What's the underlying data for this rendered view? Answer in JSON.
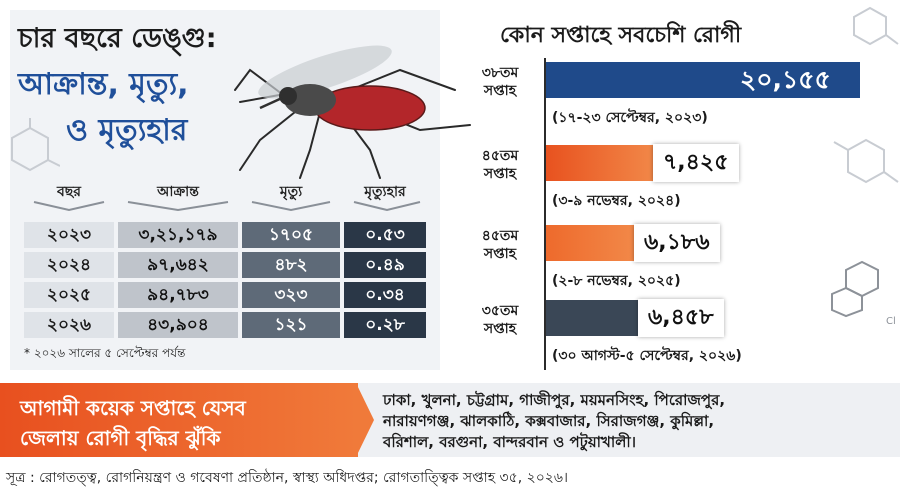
{
  "left": {
    "title_line1": "চার বছরে ডেঙ্গু:",
    "title_line2": "আক্রান্ত, মৃত্যু,",
    "title_line3": "ও মৃত্যুহার",
    "headers": {
      "year": "বছর",
      "infected": "আক্রান্ত",
      "deaths": "মৃত্যু",
      "rate": "মৃত্যুহার"
    },
    "rows": [
      {
        "year": "২০২৩",
        "infected": "৩,২১,১৭৯",
        "deaths": "১৭০৫",
        "rate": "০.৫৩"
      },
      {
        "year": "২০২৪",
        "infected": "৯৭,৬৪২",
        "deaths": "৪৮২",
        "rate": "০.৪৯"
      },
      {
        "year": "২০২৫",
        "infected": "৯৪,৭৮৩",
        "deaths": "৩২৩",
        "rate": "০.৩৪"
      },
      {
        "year": "২০২৬",
        "infected": "৪৩,৯০৪",
        "deaths": "১২১",
        "rate": "০.২৮"
      }
    ],
    "note": "* ২০২৬ সালের ৫ সেপ্টেম্বর পর্যন্ত"
  },
  "right": {
    "title": "কোন সপ্তাহে সবচেশি রোগী",
    "entries": [
      {
        "week_line1": "৩৮তম",
        "week_line2": "সপ্তাহ",
        "value": "২০,১৫৫",
        "range": "(১৭-২৩ সেপ্টেম্বর, ২০২৩)",
        "amount": 20155,
        "color": "#1f4a8a"
      },
      {
        "week_line1": "৪৫তম",
        "week_line2": "সপ্তাহ",
        "value": "৭,৪২৫",
        "range": "(৩-৯ নভেম্বর, ২০২৪)",
        "amount": 7425,
        "color": "#e8521f"
      },
      {
        "week_line1": "৪৫তম",
        "week_line2": "সপ্তাহ",
        "value": "৬,১৮৬",
        "range": "(২-৮ নভেম্বর, ২০২৫)",
        "amount": 6186,
        "color": "#ee6a2c"
      },
      {
        "week_line1": "৩৫তম",
        "week_line2": "সপ্তাহ",
        "value": "৬,৪৫৮",
        "range": "(৩০ আগস্ট-৫ সেপ্টেম্বর, ২০২৬)",
        "amount": 6458,
        "color": "#3a4756"
      }
    ]
  },
  "risk": {
    "line1": "আগামী কয়েক সপ্তাহে যেসব",
    "line2": "জেলায় রোগী বৃদ্ধির ঝুঁকি",
    "districts_line1": "ঢাকা, খুলনা, চট্টগ্রাম, গাজীপুর, ময়মনসিংহ, পিরোজপুর,",
    "districts_line2": "নারায়ণগঞ্জ, ঝালকাঠি, কক্সবাজার, সিরাজগঞ্জ, কুমিল্লা,",
    "districts_line3": "বরিশাল, বরগুনা, বান্দরবান ও পটুয়াখালী।"
  },
  "source": "সূত্র : রোগতত্ত্ব, রোগনিয়ন্ত্রণ ও গবেষণা প্রতিষ্ঠান, স্বাস্থ্য অধিদপ্তর; রোগতাত্ত্বিক সপ্তাহ ৩৫, ২০২৬।",
  "colors": {
    "accent_blue": "#1f4f9a",
    "accent_orange": "#e8501f"
  },
  "decorations": {
    "chemical_label": "Cl"
  }
}
